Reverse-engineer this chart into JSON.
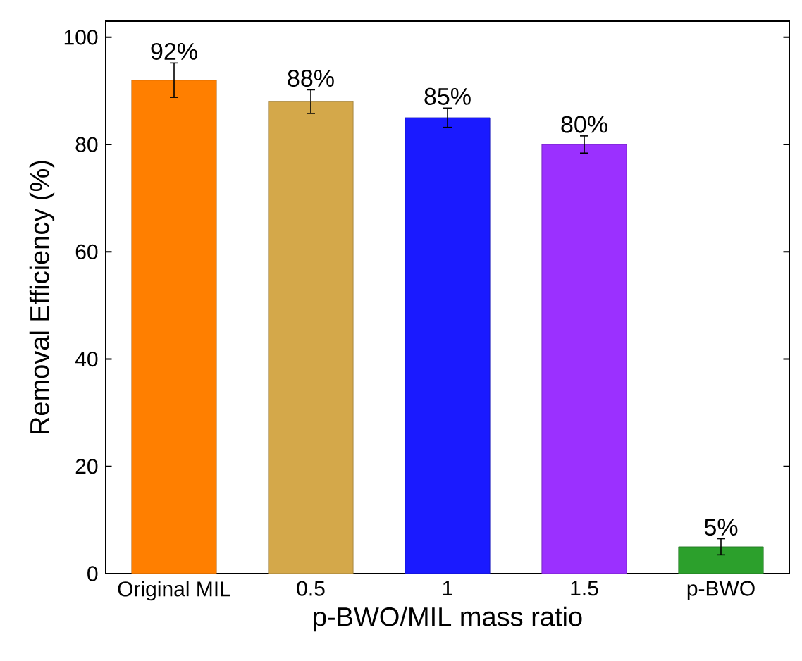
{
  "chart_data": {
    "type": "bar",
    "xlabel": "p-BWO/MIL mass ratio",
    "ylabel": "Removal Efficiency (%)",
    "categories": [
      "Original MIL",
      "0.5",
      "1",
      "1.5",
      "p-BWO"
    ],
    "values": [
      92,
      88,
      85,
      80,
      5
    ],
    "errors": [
      3.2,
      2.2,
      1.8,
      1.6,
      1.5
    ],
    "colors": [
      "#ff7f00",
      "#d4a84a",
      "#1a1aff",
      "#9b30ff",
      "#2ca02c"
    ],
    "value_labels": [
      "92%",
      "88%",
      "85%",
      "80%",
      "5%"
    ],
    "ylim": [
      0,
      103
    ],
    "yticks": [
      0,
      20,
      40,
      60,
      80,
      100
    ],
    "grid": false
  }
}
